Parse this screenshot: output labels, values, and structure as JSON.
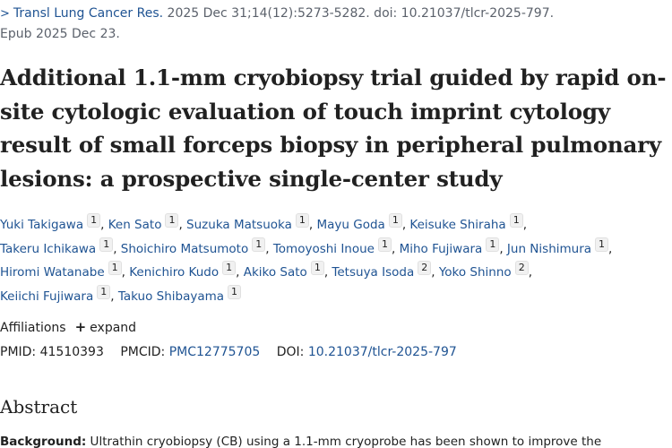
{
  "citation": {
    "journal": "Transl Lung Cancer Res.",
    "details": "2025 Dec 31;14(12):5273-5282. doi: 10.21037/tlcr-2025-797.",
    "epub": "Epub 2025 Dec 23."
  },
  "article": {
    "title": "Additional 1.1-mm cryobiopsy trial guided by rapid on-site cytologic evaluation of touch imprint cytology result of small forceps biopsy in peripheral pulmonary lesions: a prospective single-center study"
  },
  "authors": [
    {
      "name": "Yuki Takigawa",
      "aff": "1"
    },
    {
      "name": "Ken Sato",
      "aff": "1"
    },
    {
      "name": "Suzuka Matsuoka",
      "aff": "1"
    },
    {
      "name": "Mayu Goda",
      "aff": "1"
    },
    {
      "name": "Keisuke Shiraha",
      "aff": "1"
    },
    {
      "name": "Takeru Ichikawa",
      "aff": "1"
    },
    {
      "name": "Shoichiro Matsumoto",
      "aff": "1"
    },
    {
      "name": "Tomoyoshi Inoue",
      "aff": "1"
    },
    {
      "name": "Miho Fujiwara",
      "aff": "1"
    },
    {
      "name": "Jun Nishimura",
      "aff": "1"
    },
    {
      "name": "Hiromi Watanabe",
      "aff": "1"
    },
    {
      "name": "Kenichiro Kudo",
      "aff": "1"
    },
    {
      "name": "Akiko Sato",
      "aff": "1"
    },
    {
      "name": "Tetsuya Isoda",
      "aff": "2"
    },
    {
      "name": "Yoko Shinno",
      "aff": "2"
    },
    {
      "name": "Keiichi Fujiwara",
      "aff": "1"
    },
    {
      "name": "Takuo Shibayama",
      "aff": "1"
    }
  ],
  "affiliations": {
    "label": "Affiliations",
    "expand_label": "expand"
  },
  "identifiers": {
    "pmid_label": "PMID:",
    "pmid": "41510393",
    "pmcid_label": "PMCID:",
    "pmcid": "PMC12775705",
    "doi_label": "DOI:",
    "doi": "10.21037/tlcr-2025-797"
  },
  "abstract": {
    "heading": "Abstract",
    "background_label": "Background:",
    "background_text": " Ultrathin cryobiopsy (CB) using a 1.1-mm cryoprobe has been shown to improve the"
  },
  "colors": {
    "link": "#205493",
    "text": "#212121",
    "muted": "#5b616b"
  }
}
